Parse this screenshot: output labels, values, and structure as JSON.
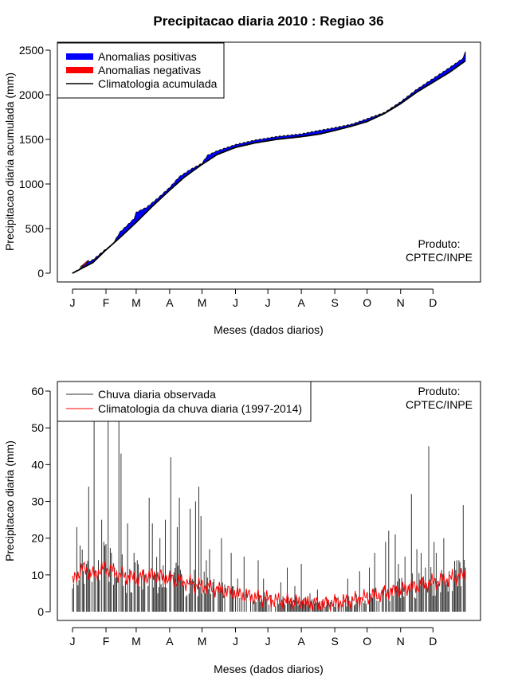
{
  "chart_data": [
    {
      "type": "area",
      "title": "Precipitacao diaria 2010 : Regiao 36",
      "xlabel": "Meses (dados diarios)",
      "ylabel": "Precipitacao diaria acumulada (mm)",
      "xlim": [
        1,
        365
      ],
      "ylim": [
        0,
        2500
      ],
      "yticks": [
        0,
        500,
        1000,
        1500,
        2000,
        2500
      ],
      "month_labels": [
        "J",
        "F",
        "M",
        "A",
        "M",
        "J",
        "J",
        "A",
        "S",
        "O",
        "N",
        "D"
      ],
      "month_days": [
        1,
        32,
        60,
        91,
        121,
        152,
        182,
        213,
        244,
        274,
        305,
        335
      ],
      "legend": {
        "position": "top-left",
        "entries": [
          {
            "label": "Anomalias positivas",
            "color": "#0000ff"
          },
          {
            "label": "Anomalias negativas",
            "color": "#ff0000"
          },
          {
            "label": "Climatologia acumulada",
            "color": "#000000"
          }
        ]
      },
      "annotation": [
        "Produto:",
        "CPTEC/INPE"
      ],
      "climatology_knots": [
        [
          1,
          0
        ],
        [
          20,
          120
        ],
        [
          31,
          250
        ],
        [
          45,
          400
        ],
        [
          60,
          570
        ],
        [
          75,
          750
        ],
        [
          91,
          930
        ],
        [
          105,
          1080
        ],
        [
          121,
          1220
        ],
        [
          135,
          1330
        ],
        [
          152,
          1410
        ],
        [
          170,
          1460
        ],
        [
          190,
          1500
        ],
        [
          213,
          1530
        ],
        [
          230,
          1560
        ],
        [
          244,
          1600
        ],
        [
          260,
          1650
        ],
        [
          274,
          1700
        ],
        [
          290,
          1790
        ],
        [
          305,
          1900
        ],
        [
          320,
          2030
        ],
        [
          335,
          2140
        ],
        [
          350,
          2250
        ],
        [
          365,
          2380
        ]
      ],
      "observed_knots": [
        [
          1,
          0
        ],
        [
          8,
          50
        ],
        [
          13,
          110
        ],
        [
          20,
          150
        ],
        [
          25,
          200
        ],
        [
          31,
          260
        ],
        [
          38,
          320
        ],
        [
          45,
          460
        ],
        [
          52,
          540
        ],
        [
          58,
          610
        ],
        [
          60,
          680
        ],
        [
          70,
          740
        ],
        [
          80,
          840
        ],
        [
          91,
          960
        ],
        [
          100,
          1080
        ],
        [
          110,
          1160
        ],
        [
          121,
          1230
        ],
        [
          126,
          1320
        ],
        [
          135,
          1370
        ],
        [
          152,
          1440
        ],
        [
          170,
          1490
        ],
        [
          190,
          1530
        ],
        [
          213,
          1560
        ],
        [
          230,
          1600
        ],
        [
          244,
          1630
        ],
        [
          260,
          1670
        ],
        [
          274,
          1730
        ],
        [
          290,
          1800
        ],
        [
          305,
          1920
        ],
        [
          320,
          2060
        ],
        [
          335,
          2180
        ],
        [
          350,
          2300
        ],
        [
          363,
          2410
        ],
        [
          365,
          2490
        ]
      ]
    },
    {
      "type": "bar",
      "title": "",
      "xlabel": "Meses (dados diarios)",
      "ylabel": "Precipitacao diaria (mm)",
      "xlim": [
        1,
        365
      ],
      "ylim": [
        0,
        60
      ],
      "yticks": [
        0,
        10,
        20,
        30,
        40,
        50,
        60
      ],
      "month_labels": [
        "J",
        "F",
        "M",
        "A",
        "M",
        "J",
        "J",
        "A",
        "S",
        "O",
        "N",
        "D"
      ],
      "month_days": [
        1,
        32,
        60,
        91,
        121,
        152,
        182,
        213,
        244,
        274,
        305,
        335
      ],
      "legend": {
        "position": "top-left",
        "entries": [
          {
            "label": "Chuva diaria observada",
            "color": "#333333"
          },
          {
            "label": "Climatologia da chuva diaria (1997-2014)",
            "color": "#ff0000"
          }
        ]
      },
      "annotation": [
        "Produto:",
        "CPTEC/INPE"
      ],
      "climatology_knots": [
        [
          1,
          8
        ],
        [
          10,
          12
        ],
        [
          20,
          10
        ],
        [
          31,
          12
        ],
        [
          45,
          10
        ],
        [
          60,
          9
        ],
        [
          75,
          10
        ],
        [
          91,
          9
        ],
        [
          105,
          8
        ],
        [
          121,
          7
        ],
        [
          135,
          6
        ],
        [
          152,
          5
        ],
        [
          170,
          4
        ],
        [
          190,
          3
        ],
        [
          213,
          2.5
        ],
        [
          230,
          2
        ],
        [
          244,
          2.5
        ],
        [
          260,
          3
        ],
        [
          274,
          4
        ],
        [
          290,
          5
        ],
        [
          305,
          6
        ],
        [
          320,
          7
        ],
        [
          335,
          8
        ],
        [
          350,
          9
        ],
        [
          365,
          10
        ]
      ],
      "peak_events": [
        [
          5,
          23
        ],
        [
          8,
          18
        ],
        [
          14,
          13
        ],
        [
          16,
          34
        ],
        [
          21,
          60
        ],
        [
          25,
          14
        ],
        [
          28,
          25
        ],
        [
          30,
          19
        ],
        [
          34,
          60
        ],
        [
          37,
          16
        ],
        [
          40,
          12
        ],
        [
          44,
          60
        ],
        [
          46,
          43
        ],
        [
          52,
          24
        ],
        [
          58,
          16
        ],
        [
          61,
          14
        ],
        [
          72,
          31
        ],
        [
          75,
          24
        ],
        [
          82,
          20
        ],
        [
          87,
          25
        ],
        [
          92,
          42
        ],
        [
          98,
          23
        ],
        [
          100,
          31
        ],
        [
          110,
          28
        ],
        [
          115,
          30
        ],
        [
          118,
          34
        ],
        [
          120,
          26
        ],
        [
          125,
          14
        ],
        [
          128,
          17
        ],
        [
          139,
          20
        ],
        [
          148,
          16
        ],
        [
          154,
          9
        ],
        [
          160,
          15
        ],
        [
          173,
          14
        ],
        [
          178,
          9
        ],
        [
          194,
          8
        ],
        [
          200,
          12
        ],
        [
          207,
          7
        ],
        [
          213,
          13
        ],
        [
          221,
          5
        ],
        [
          228,
          6
        ],
        [
          245,
          4
        ],
        [
          256,
          9
        ],
        [
          267,
          11
        ],
        [
          276,
          12
        ],
        [
          281,
          16
        ],
        [
          291,
          19
        ],
        [
          294,
          22
        ],
        [
          300,
          21
        ],
        [
          303,
          13
        ],
        [
          309,
          15
        ],
        [
          315,
          32
        ],
        [
          320,
          17
        ],
        [
          324,
          16
        ],
        [
          328,
          12
        ],
        [
          331,
          45
        ],
        [
          336,
          19
        ],
        [
          338,
          16
        ],
        [
          345,
          20
        ],
        [
          350,
          11
        ],
        [
          354,
          9
        ],
        [
          359,
          14
        ],
        [
          363,
          29
        ],
        [
          365,
          12
        ]
      ]
    }
  ]
}
